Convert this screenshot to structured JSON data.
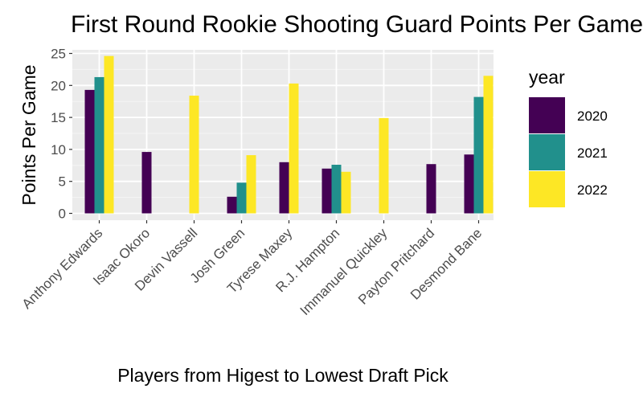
{
  "chart_data": {
    "type": "bar",
    "title": "First Round Rookie Shooting Guard Points Per Game",
    "xlabel": "Players from Higest to Lowest Draft Pick",
    "ylabel": "Points Per Game",
    "ylim": [
      0,
      25
    ],
    "yticks": [
      0,
      5,
      10,
      15,
      20,
      25
    ],
    "grid": true,
    "legend": {
      "title": "year",
      "placement": "right"
    },
    "categories": [
      "Anthony Edwards",
      "Isaac Okoro",
      "Devin Vassell",
      "Josh Green",
      "Tyrese Maxey",
      "R.J. Hampton",
      "Immanuel Quickley",
      "Payton Pritchard",
      "Desmond Bane"
    ],
    "series": [
      {
        "name": "2020",
        "color": "#440154",
        "values": [
          19.3,
          9.6,
          null,
          2.6,
          8.0,
          7.0,
          null,
          7.7,
          9.2
        ]
      },
      {
        "name": "2021",
        "color": "#21908C",
        "values": [
          21.3,
          null,
          null,
          4.8,
          null,
          7.6,
          null,
          null,
          18.2
        ]
      },
      {
        "name": "2022",
        "color": "#FDE725",
        "values": [
          24.6,
          null,
          18.4,
          9.1,
          20.3,
          6.5,
          14.9,
          null,
          21.5
        ]
      }
    ]
  }
}
